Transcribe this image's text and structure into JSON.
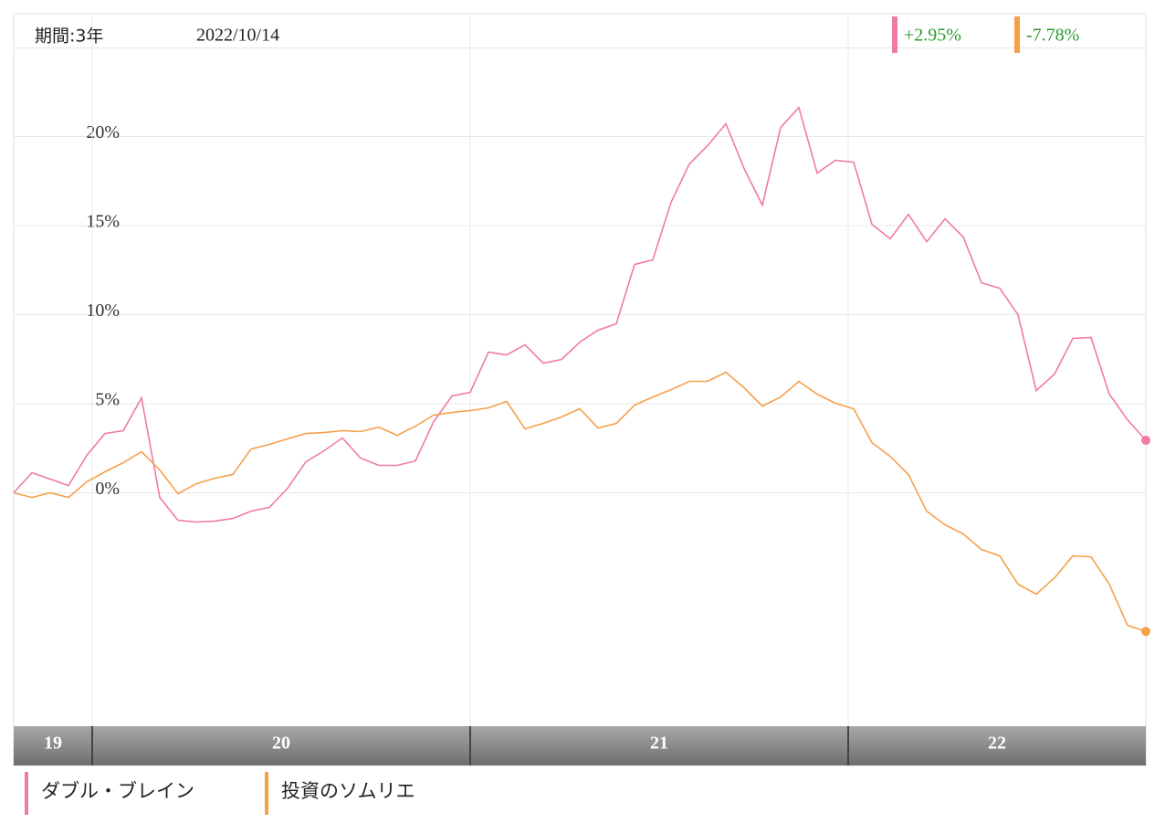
{
  "chart_data": {
    "type": "line",
    "period_label": "期間:3年",
    "date": "2022/10/14",
    "ylim": [
      -13.1,
      26.9
    ],
    "yticks": [
      {
        "value": 0,
        "label": "0%"
      },
      {
        "value": 5,
        "label": "5%"
      },
      {
        "value": 10,
        "label": "10%"
      },
      {
        "value": 15,
        "label": "15%"
      },
      {
        "value": 20,
        "label": "20%"
      }
    ],
    "xlim": [
      0,
      62
    ],
    "xticks": [
      4.3,
      25,
      45.7
    ],
    "x_band_labels": [
      "19",
      "20",
      "21",
      "22"
    ],
    "grid": true,
    "series": [
      {
        "name": "ダブル・ブレイン",
        "color": "#f07aa8",
        "end_label": "+2.95%",
        "values": [
          0,
          1.13,
          0.77,
          0.41,
          2.1,
          3.33,
          3.49,
          5.33,
          -0.26,
          -1.54,
          -1.64,
          -1.59,
          -1.44,
          -1.03,
          -0.82,
          0.26,
          1.74,
          2.36,
          3.08,
          1.95,
          1.54,
          1.54,
          1.79,
          4.0,
          5.44,
          5.64,
          7.9,
          7.74,
          8.31,
          7.28,
          7.49,
          8.46,
          9.13,
          9.49,
          12.82,
          13.08,
          16.31,
          18.46,
          19.49,
          20.72,
          18.21,
          16.15,
          20.51,
          21.64,
          17.95,
          18.67,
          18.56,
          15.08,
          14.26,
          15.64,
          14.1,
          15.38,
          14.36,
          11.79,
          11.49,
          10.0,
          5.74,
          6.67,
          8.67,
          8.72,
          5.54,
          4.1,
          2.95
        ]
      },
      {
        "name": "投資のソムリエ",
        "color": "#f5a04a",
        "end_label": "-7.78%",
        "values": [
          0,
          -0.26,
          0,
          -0.26,
          0.62,
          1.18,
          1.69,
          2.31,
          1.28,
          -0.05,
          0.51,
          0.82,
          1.03,
          2.46,
          2.72,
          3.03,
          3.33,
          3.38,
          3.49,
          3.44,
          3.69,
          3.23,
          3.74,
          4.36,
          4.51,
          4.62,
          4.77,
          5.13,
          3.59,
          3.9,
          4.26,
          4.72,
          3.64,
          3.9,
          4.92,
          5.38,
          5.79,
          6.26,
          6.26,
          6.77,
          5.9,
          4.87,
          5.38,
          6.26,
          5.54,
          5.03,
          4.72,
          2.82,
          2.05,
          1.03,
          -1.03,
          -1.79,
          -2.31,
          -3.18,
          -3.54,
          -5.13,
          -5.69,
          -4.77,
          -3.54,
          -3.59,
          -5.13,
          -7.44,
          -7.78
        ]
      }
    ]
  }
}
